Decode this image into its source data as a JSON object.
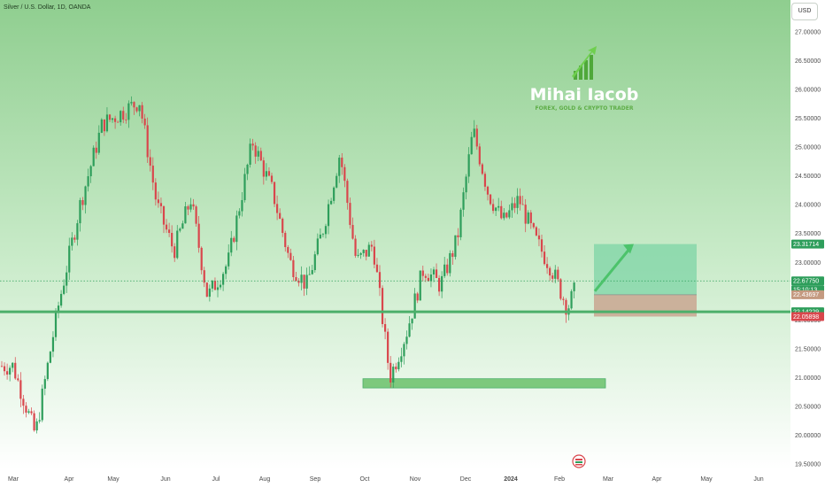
{
  "header": {
    "symbol_title": "Silver / U.S. Dollar, 1D, OANDA",
    "currency_button": "USD"
  },
  "watermark": {
    "name": "Mihai Iacob",
    "tagline": "FOREX, GOLD & CRYPTO TRADER"
  },
  "colors": {
    "bull_candle": "#2e9e5b",
    "bear_candle": "#d9464c",
    "background_top": "#8fce8f",
    "background_bottom": "#ffffff",
    "support_line": "#4caf6a",
    "target_zone": "#7ed4a6",
    "stop_zone": "#c9a691",
    "demand_zone": "#7dc97d",
    "arrow": "#4cc36b",
    "price_tag_green": "#2e9e5b",
    "price_tag_red": "#d9464c",
    "brand": "#4fa83a"
  },
  "chart_data": {
    "type": "candlestick",
    "title": "Silver / U.S. Dollar, 1D, OANDA",
    "currency": "USD",
    "y_axis": {
      "ticks": [
        "27.00000",
        "26.50000",
        "26.00000",
        "25.50000",
        "25.00000",
        "24.50000",
        "24.00000",
        "23.50000",
        "23.00000",
        "22.50000",
        "22.00000",
        "21.50000",
        "21.00000",
        "20.50000",
        "20.00000",
        "19.50000"
      ],
      "range": [
        19.45,
        27.15
      ]
    },
    "x_axis": {
      "ticks": [
        "Mar",
        "Apr",
        "May",
        "Jun",
        "Jul",
        "Aug",
        "Sep",
        "Oct",
        "Nov",
        "Dec",
        "2024",
        "Feb",
        "Mar",
        "Apr",
        "May",
        "Jun"
      ]
    },
    "price_path": [
      {
        "month": "Mar",
        "price": 21.2
      },
      {
        "month": "Mar",
        "price": 20.0
      },
      {
        "month": "Mar",
        "price": 22.2
      },
      {
        "month": "Apr",
        "price": 24.0
      },
      {
        "month": "Apr",
        "price": 25.4
      },
      {
        "month": "May",
        "price": 25.6
      },
      {
        "month": "May",
        "price": 25.8
      },
      {
        "month": "May",
        "price": 24.0
      },
      {
        "month": "Jun",
        "price": 23.2
      },
      {
        "month": "Jun",
        "price": 24.1
      },
      {
        "month": "Jun",
        "price": 22.4
      },
      {
        "month": "Jul",
        "price": 23.0
      },
      {
        "month": "Jul",
        "price": 25.1
      },
      {
        "month": "Aug",
        "price": 24.2
      },
      {
        "month": "Aug",
        "price": 23.0
      },
      {
        "month": "Aug",
        "price": 22.6
      },
      {
        "month": "Sep",
        "price": 23.6
      },
      {
        "month": "Sep",
        "price": 24.9
      },
      {
        "month": "Sep",
        "price": 23.0
      },
      {
        "month": "Oct",
        "price": 23.3
      },
      {
        "month": "Oct",
        "price": 21.0
      },
      {
        "month": "Oct",
        "price": 21.8
      },
      {
        "month": "Nov",
        "price": 22.9
      },
      {
        "month": "Nov",
        "price": 22.6
      },
      {
        "month": "Nov",
        "price": 23.4
      },
      {
        "month": "Dec",
        "price": 25.3
      },
      {
        "month": "Dec",
        "price": 24.2
      },
      {
        "month": "Dec",
        "price": 23.7
      },
      {
        "month": "2024",
        "price": 24.1
      },
      {
        "month": "2024",
        "price": 23.4
      },
      {
        "month": "2024",
        "price": 22.9
      },
      {
        "month": "Feb",
        "price": 22.2
      },
      {
        "month": "Feb",
        "price": 22.9
      },
      {
        "month": "Feb",
        "price": 22.6
      }
    ],
    "horizontal_line": {
      "price": 22.14229
    },
    "dotted_line": {
      "price": 22.6775
    },
    "position": {
      "start_month": "Feb",
      "end_month": "May",
      "entry": 22.43697,
      "target": 23.31714,
      "stop": 22.05898
    },
    "demand_zone": {
      "start_month": "Oct",
      "end_month": "Mar",
      "low": 20.82,
      "high": 20.98
    },
    "price_tags": [
      {
        "label": "23.31714",
        "price": 23.31714,
        "kind": "green"
      },
      {
        "label": "22.67750",
        "price": 22.6775,
        "kind": "green"
      },
      {
        "label": "15:10:13",
        "price": 22.6775,
        "kind": "green",
        "row": 2
      },
      {
        "label": "22.43697",
        "price": 22.43697,
        "kind": "brown"
      },
      {
        "label": "22.14229",
        "price": 22.14229,
        "kind": "green"
      },
      {
        "label": "22.05898",
        "price": 22.05898,
        "kind": "red"
      }
    ]
  }
}
